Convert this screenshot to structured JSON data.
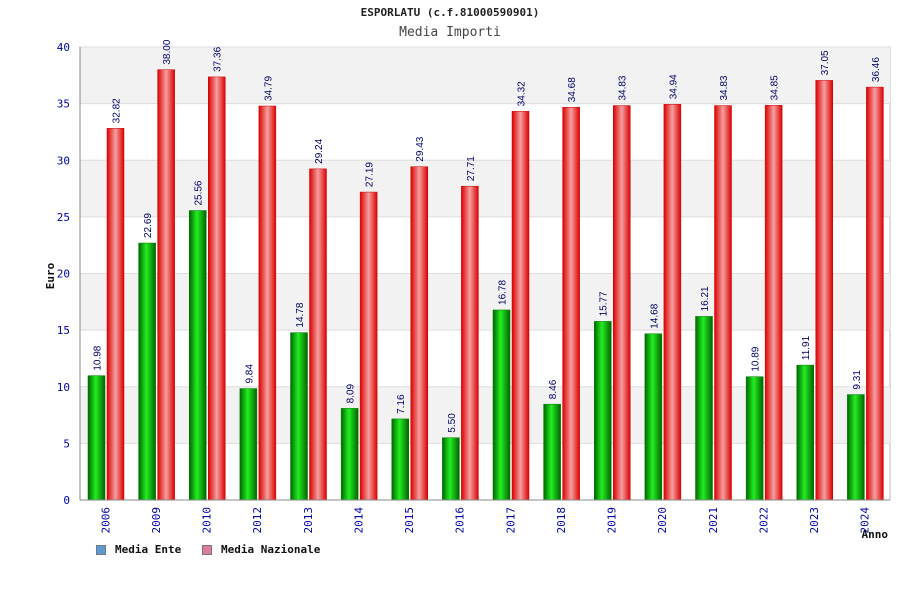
{
  "chart_data": {
    "type": "bar",
    "title": "ESPORLATU (c.f.81000590901)",
    "subtitle": "Media Importi",
    "ylabel": "Euro",
    "xlabel": "Anno",
    "ylim": [
      0,
      40
    ],
    "yticks": [
      "0",
      "5",
      "10",
      "15",
      "20",
      "25",
      "30",
      "35",
      "40"
    ],
    "categories": [
      "2006",
      "2009",
      "2010",
      "2012",
      "2013",
      "2014",
      "2015",
      "2016",
      "2017",
      "2018",
      "2019",
      "2020",
      "2021",
      "2022",
      "2023",
      "2024"
    ],
    "series": [
      {
        "name": "Media Ente",
        "values": [
          10.98,
          22.69,
          25.56,
          9.84,
          14.78,
          8.09,
          7.16,
          5.5,
          16.78,
          8.46,
          15.77,
          14.68,
          16.21,
          10.89,
          11.91,
          9.31
        ],
        "labels": [
          "10.98",
          "22.69",
          "25.56",
          "9.84",
          "14.78",
          "8.09",
          "7.16",
          "5.50",
          "16.78",
          "8.46",
          "15.77",
          "14.68",
          "16.21",
          "10.89",
          "11.91",
          "9.31"
        ]
      },
      {
        "name": "Media Nazionale",
        "values": [
          32.82,
          38.0,
          37.36,
          34.79,
          29.24,
          27.19,
          29.43,
          27.71,
          34.32,
          34.68,
          34.83,
          34.94,
          34.83,
          34.85,
          37.05,
          36.46
        ],
        "labels": [
          "32.82",
          "38.00",
          "37.36",
          "34.79",
          "29.24",
          "27.19",
          "29.43",
          "27.71",
          "34.32",
          "34.68",
          "34.83",
          "34.94",
          "34.83",
          "34.85",
          "37.05",
          "36.46"
        ]
      }
    ],
    "grid": true,
    "legend_position": "bottom-left",
    "colors": {
      "ente": "#00bb00",
      "nazionale": "#ee0000",
      "legend_ente": "#5b9bd5",
      "legend_nazionale": "#e07aa0",
      "axis_text": "#0000aa"
    }
  }
}
